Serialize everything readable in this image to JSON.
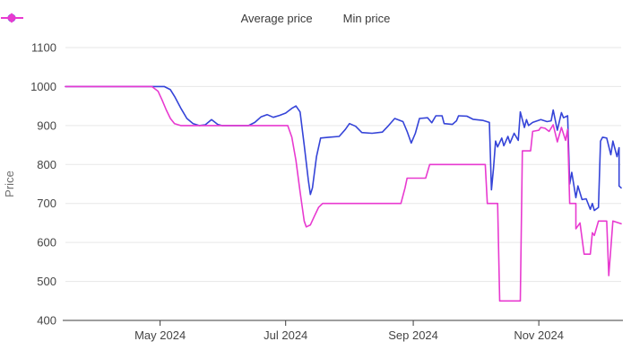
{
  "chart_data": {
    "type": "line",
    "title": "",
    "xlabel": "",
    "ylabel": "Price",
    "ylim": [
      400,
      1100
    ],
    "y_ticks": [
      1100,
      1000,
      900,
      800,
      700,
      600,
      500,
      400
    ],
    "x_domain": [
      "2024-03-16",
      "2024-12-11"
    ],
    "x_ticks": [
      {
        "date": "2024-05-01",
        "label": "May 2024"
      },
      {
        "date": "2024-07-01",
        "label": "Jul 2024"
      },
      {
        "date": "2024-09-01",
        "label": "Sep 2024"
      },
      {
        "date": "2024-11-01",
        "label": "Nov 2024"
      }
    ],
    "grid": true,
    "legend_position": "top",
    "colors": {
      "average": "#3544d8",
      "min": "#e83ad0",
      "grid": "#e7e7e7",
      "axis": "#3c3c3c"
    },
    "series": [
      {
        "name": "Average price",
        "color": "#3544d8",
        "marker": "circle",
        "points": [
          [
            "2024-03-16",
            1000
          ],
          [
            "2024-05-03",
            1000
          ],
          [
            "2024-05-06",
            992
          ],
          [
            "2024-05-08",
            975
          ],
          [
            "2024-05-11",
            945
          ],
          [
            "2024-05-14",
            918
          ],
          [
            "2024-05-17",
            905
          ],
          [
            "2024-05-20",
            900
          ],
          [
            "2024-05-23",
            902
          ],
          [
            "2024-05-26",
            915
          ],
          [
            "2024-05-29",
            903
          ],
          [
            "2024-05-31",
            900
          ],
          [
            "2024-06-13",
            900
          ],
          [
            "2024-06-16",
            908
          ],
          [
            "2024-06-19",
            922
          ],
          [
            "2024-06-22",
            928
          ],
          [
            "2024-06-25",
            921
          ],
          [
            "2024-06-28",
            926
          ],
          [
            "2024-07-01",
            932
          ],
          [
            "2024-07-04",
            944
          ],
          [
            "2024-07-06",
            950
          ],
          [
            "2024-07-08",
            935
          ],
          [
            "2024-07-10",
            850
          ],
          [
            "2024-07-12",
            760
          ],
          [
            "2024-07-13",
            723
          ],
          [
            "2024-07-14",
            740
          ],
          [
            "2024-07-16",
            820
          ],
          [
            "2024-07-18",
            868
          ],
          [
            "2024-07-22",
            870
          ],
          [
            "2024-07-27",
            872
          ],
          [
            "2024-07-30",
            890
          ],
          [
            "2024-08-01",
            905
          ],
          [
            "2024-08-04",
            898
          ],
          [
            "2024-08-07",
            882
          ],
          [
            "2024-08-12",
            880
          ],
          [
            "2024-08-17",
            883
          ],
          [
            "2024-08-20",
            900
          ],
          [
            "2024-08-23",
            918
          ],
          [
            "2024-08-27",
            910
          ],
          [
            "2024-08-29",
            885
          ],
          [
            "2024-08-31",
            855
          ],
          [
            "2024-09-02",
            880
          ],
          [
            "2024-09-04",
            918
          ],
          [
            "2024-09-08",
            920
          ],
          [
            "2024-09-10",
            907
          ],
          [
            "2024-09-12",
            925
          ],
          [
            "2024-09-15",
            925
          ],
          [
            "2024-09-16",
            905
          ],
          [
            "2024-09-20",
            903
          ],
          [
            "2024-09-22",
            912
          ],
          [
            "2024-09-23",
            925
          ],
          [
            "2024-09-27",
            924
          ],
          [
            "2024-09-30",
            916
          ],
          [
            "2024-10-05",
            913
          ],
          [
            "2024-10-08",
            908
          ],
          [
            "2024-10-09",
            735
          ],
          [
            "2024-10-10",
            790
          ],
          [
            "2024-10-11",
            860
          ],
          [
            "2024-10-12",
            845
          ],
          [
            "2024-10-14",
            868
          ],
          [
            "2024-10-15",
            848
          ],
          [
            "2024-10-17",
            872
          ],
          [
            "2024-10-18",
            855
          ],
          [
            "2024-10-20",
            880
          ],
          [
            "2024-10-22",
            862
          ],
          [
            "2024-10-23",
            935
          ],
          [
            "2024-10-25",
            895
          ],
          [
            "2024-10-26",
            915
          ],
          [
            "2024-10-27",
            900
          ],
          [
            "2024-10-29",
            908
          ],
          [
            "2024-11-02",
            915
          ],
          [
            "2024-11-05",
            910
          ],
          [
            "2024-11-07",
            912
          ],
          [
            "2024-11-08",
            940
          ],
          [
            "2024-11-10",
            888
          ],
          [
            "2024-11-12",
            933
          ],
          [
            "2024-11-13",
            920
          ],
          [
            "2024-11-15",
            925
          ],
          [
            "2024-11-16",
            750
          ],
          [
            "2024-11-17",
            780
          ],
          [
            "2024-11-19",
            715
          ],
          [
            "2024-11-20",
            745
          ],
          [
            "2024-11-22",
            710
          ],
          [
            "2024-11-24",
            712
          ],
          [
            "2024-11-26",
            685
          ],
          [
            "2024-11-27",
            700
          ],
          [
            "2024-11-28",
            682
          ],
          [
            "2024-11-30",
            690
          ],
          [
            "2024-12-01",
            860
          ],
          [
            "2024-12-02",
            870
          ],
          [
            "2024-12-04",
            868
          ],
          [
            "2024-12-06",
            825
          ],
          [
            "2024-12-07",
            860
          ],
          [
            "2024-12-09",
            820
          ],
          [
            "2024-12-10",
            843
          ],
          [
            "2024-12-10",
            745
          ],
          [
            "2024-12-11",
            740
          ]
        ]
      },
      {
        "name": "Min price",
        "color": "#e83ad0",
        "marker": "diamond",
        "points": [
          [
            "2024-03-16",
            1000
          ],
          [
            "2024-04-27",
            1000
          ],
          [
            "2024-04-30",
            988
          ],
          [
            "2024-05-02",
            965
          ],
          [
            "2024-05-04",
            940
          ],
          [
            "2024-05-06",
            918
          ],
          [
            "2024-05-08",
            905
          ],
          [
            "2024-05-11",
            900
          ],
          [
            "2024-07-02",
            900
          ],
          [
            "2024-07-04",
            870
          ],
          [
            "2024-07-06",
            810
          ],
          [
            "2024-07-08",
            730
          ],
          [
            "2024-07-10",
            655
          ],
          [
            "2024-07-11",
            640
          ],
          [
            "2024-07-13",
            645
          ],
          [
            "2024-07-15",
            668
          ],
          [
            "2024-07-17",
            690
          ],
          [
            "2024-07-19",
            700
          ],
          [
            "2024-08-26",
            700
          ],
          [
            "2024-08-28",
            740
          ],
          [
            "2024-08-29",
            765
          ],
          [
            "2024-09-07",
            765
          ],
          [
            "2024-09-09",
            800
          ],
          [
            "2024-10-06",
            800
          ],
          [
            "2024-10-07",
            700
          ],
          [
            "2024-10-12",
            700
          ],
          [
            "2024-10-13",
            450
          ],
          [
            "2024-10-23",
            450
          ],
          [
            "2024-10-24",
            835
          ],
          [
            "2024-10-28",
            835
          ],
          [
            "2024-10-29",
            885
          ],
          [
            "2024-11-01",
            888
          ],
          [
            "2024-11-02",
            895
          ],
          [
            "2024-11-04",
            893
          ],
          [
            "2024-11-06",
            885
          ],
          [
            "2024-11-08",
            902
          ],
          [
            "2024-11-10",
            858
          ],
          [
            "2024-11-12",
            895
          ],
          [
            "2024-11-14",
            862
          ],
          [
            "2024-11-15",
            890
          ],
          [
            "2024-11-16",
            700
          ],
          [
            "2024-11-19",
            700
          ],
          [
            "2024-11-19",
            635
          ],
          [
            "2024-11-21",
            650
          ],
          [
            "2024-11-23",
            570
          ],
          [
            "2024-11-26",
            570
          ],
          [
            "2024-11-27",
            625
          ],
          [
            "2024-11-28",
            618
          ],
          [
            "2024-11-30",
            655
          ],
          [
            "2024-12-04",
            655
          ],
          [
            "2024-12-05",
            515
          ],
          [
            "2024-12-07",
            655
          ],
          [
            "2024-12-11",
            648
          ]
        ]
      }
    ]
  }
}
